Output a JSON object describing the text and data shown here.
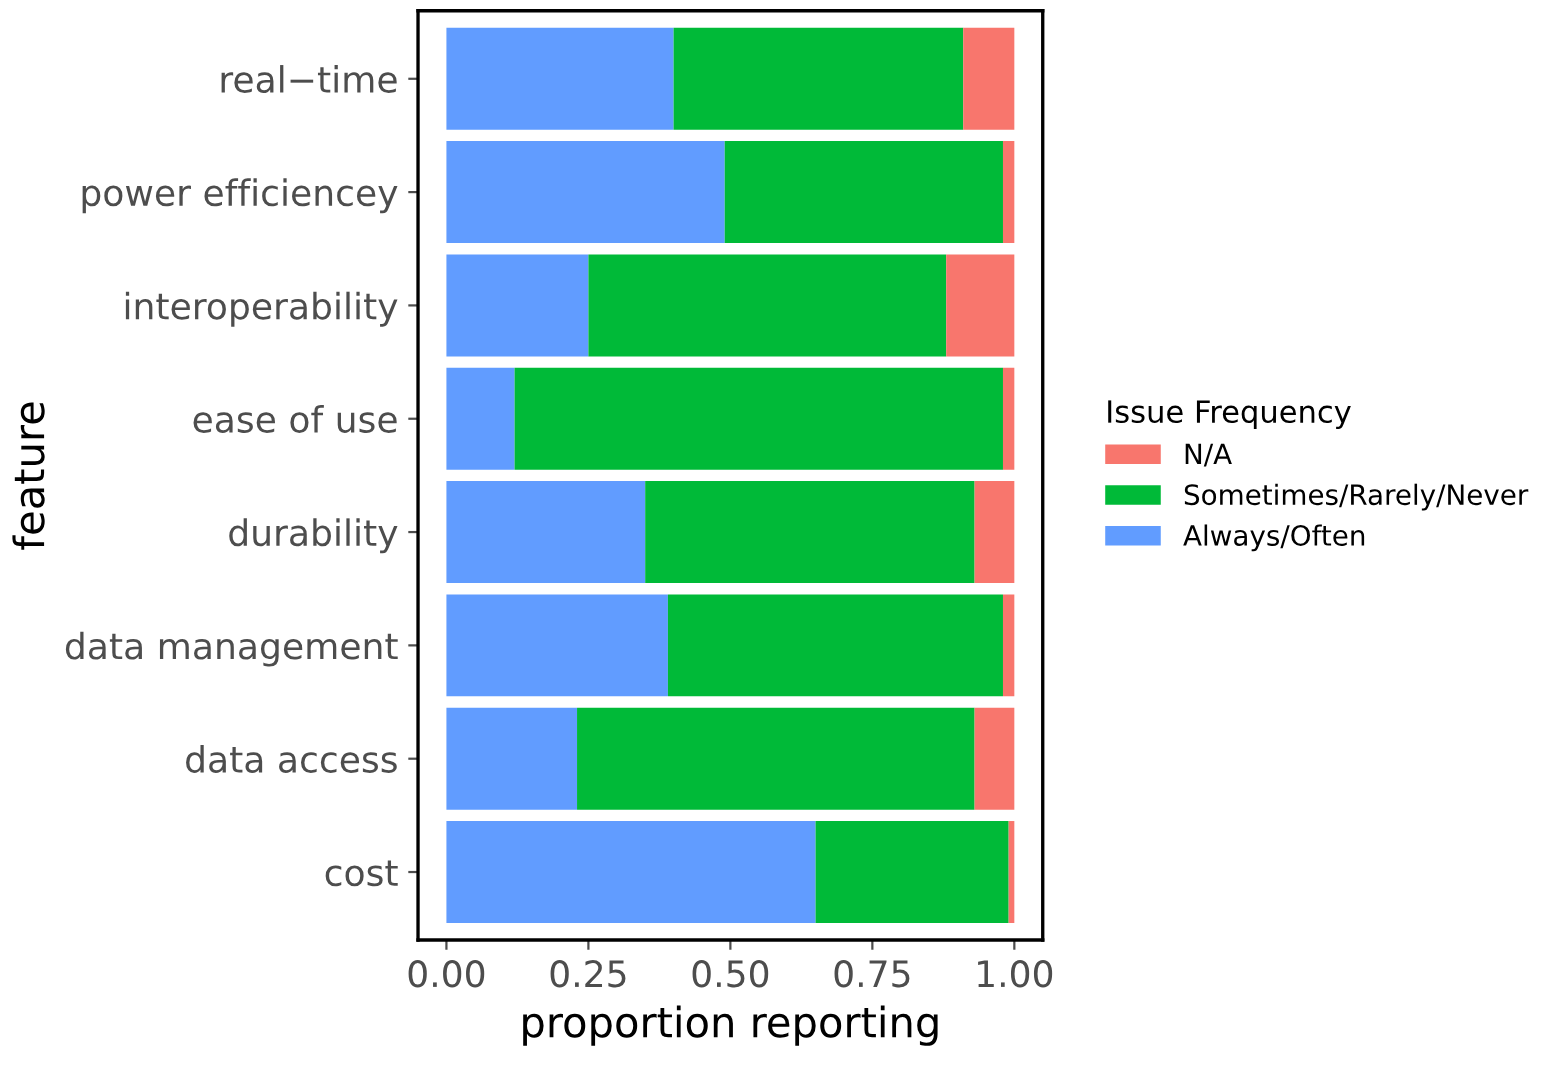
{
  "chart_data": {
    "type": "bar",
    "orientation": "horizontal",
    "stacked": true,
    "xlabel": "proportion reporting",
    "ylabel": "feature",
    "legend_title": "Issue Frequency",
    "legend": "right",
    "categories": [
      "real−time",
      "power efficiencey",
      "interoperability",
      "ease of use",
      "durability",
      "data management",
      "data access",
      "cost"
    ],
    "series": [
      {
        "name": "Always/Often",
        "color": "#619cff",
        "values": [
          0.4,
          0.49,
          0.25,
          0.12,
          0.35,
          0.39,
          0.23,
          0.65
        ]
      },
      {
        "name": "Sometimes/Rarely/Never",
        "color": "#00ba38",
        "values": [
          0.51,
          0.49,
          0.63,
          0.86,
          0.58,
          0.59,
          0.7,
          0.34
        ]
      },
      {
        "name": "N/A",
        "color": "#f8766d",
        "values": [
          0.09,
          0.02,
          0.12,
          0.02,
          0.07,
          0.02,
          0.07,
          0.01
        ]
      }
    ],
    "xlim": [
      -0.05,
      1.05
    ],
    "xticks": [
      {
        "value": 0,
        "label": "0.00"
      },
      {
        "value": 0.25,
        "label": "0.25"
      },
      {
        "value": 0.5,
        "label": "0.50"
      },
      {
        "value": 0.75,
        "label": "0.75"
      },
      {
        "value": 1,
        "label": "1.00"
      }
    ],
    "grid": false
  }
}
